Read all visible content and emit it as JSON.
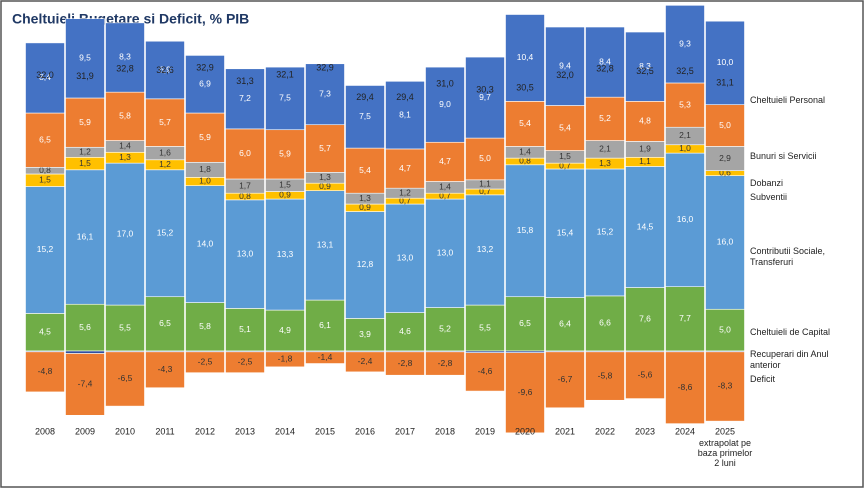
{
  "chart_data": {
    "type": "stacked-bar",
    "title": "Cheltuieli Bugetare si Deficit, % PIB",
    "categories": [
      "2008",
      "2009",
      "2010",
      "2011",
      "2012",
      "2013",
      "2014",
      "2015",
      "2016",
      "2017",
      "2018",
      "2019",
      "2020",
      "2021",
      "2022",
      "2023",
      "2024",
      "2025"
    ],
    "annotation": "extrapolat pe baza primelor 2 luni",
    "series": [
      {
        "name": "Cheltuieli de Capital",
        "color": "#70ad47",
        "values": [
          4.5,
          5.6,
          5.5,
          6.5,
          5.8,
          5.1,
          4.9,
          6.1,
          3.9,
          4.6,
          5.2,
          5.5,
          6.5,
          6.4,
          6.6,
          7.6,
          7.7,
          5.0
        ],
        "value_labels": [
          "4,5",
          "5,6",
          "5,5",
          "6,5",
          "5,8",
          "5,1",
          "4,9",
          "6,1",
          "3,9",
          "4,6",
          "5,2",
          "5,5",
          "6,5",
          "6,4",
          "6,6",
          "7,6",
          "7,7",
          "5,0"
        ]
      },
      {
        "name": "Contributii Sociale, Transferuri",
        "color": "#5b9bd5",
        "values": [
          15.2,
          16.1,
          17.0,
          15.2,
          14.0,
          13.0,
          13.3,
          13.1,
          12.8,
          13.0,
          13.0,
          13.2,
          15.8,
          15.4,
          15.2,
          14.5,
          16.0,
          16.0
        ],
        "value_labels": [
          "15,2",
          "16,1",
          "17,0",
          "15,2",
          "14,0",
          "13,0",
          "13,3",
          "13,1",
          "12,8",
          "13,0",
          "13,0",
          "13,2",
          "15,8",
          "15,4",
          "15,2",
          "14,5",
          "16,0",
          "16,0"
        ]
      },
      {
        "name": "Subventii",
        "color": "#ffc000",
        "values": [
          1.5,
          1.5,
          1.3,
          1.2,
          1.0,
          0.8,
          0.9,
          0.9,
          0.9,
          0.7,
          0.7,
          0.7,
          0.8,
          0.7,
          1.3,
          1.1,
          1.0,
          0.6
        ],
        "value_labels": [
          "1,5",
          "1,5",
          "1,3",
          "1,2",
          "1,0",
          "0,8",
          "0,9",
          "0,9",
          "0,9",
          "0,7",
          "0,7",
          "0,7",
          "0,8",
          "0,7",
          "1,3",
          "1,1",
          "1,0",
          "0,6"
        ]
      },
      {
        "name": "Dobanzi",
        "color": "#a5a5a5",
        "values": [
          0.8,
          1.2,
          1.4,
          1.6,
          1.8,
          1.7,
          1.5,
          1.3,
          1.3,
          1.2,
          1.4,
          1.1,
          1.4,
          1.5,
          2.1,
          1.9,
          2.1,
          2.9
        ],
        "value_labels": [
          "0,8",
          "1,2",
          "1,4",
          "1,6",
          "1,8",
          "1,7",
          "1,5",
          "1,3",
          "1,3",
          "1,2",
          "1,4",
          "1,1",
          "1,4",
          "1,5",
          "2,1",
          "1,9",
          "2,1",
          "2,9"
        ]
      },
      {
        "name": "Bunuri si Servicii",
        "color": "#ed7d31",
        "values": [
          6.5,
          5.9,
          5.8,
          5.7,
          5.9,
          6.0,
          5.9,
          5.7,
          5.4,
          4.7,
          4.7,
          5.0,
          5.4,
          5.4,
          5.2,
          4.8,
          5.3,
          5.0
        ],
        "value_labels": [
          "6,5",
          "5,9",
          "5,8",
          "5,7",
          "5,9",
          "6,0",
          "5,9",
          "5,7",
          "5,4",
          "4,7",
          "4,7",
          "5,0",
          "5,4",
          "5,4",
          "5,2",
          "4,8",
          "5,3",
          "5,0"
        ]
      },
      {
        "name": "Cheltuieli Personal",
        "color": "#4472c4",
        "values": [
          8.4,
          9.5,
          8.3,
          6.9,
          6.9,
          7.2,
          7.5,
          7.3,
          7.5,
          8.1,
          9.0,
          9.7,
          10.4,
          9.4,
          8.4,
          8.3,
          9.3,
          10.0
        ],
        "value_labels": [
          "8,4",
          "9,5",
          "8,3",
          "6,9",
          "6,9",
          "7,2",
          "7,5",
          "7,3",
          "7,5",
          "8,1",
          "9,0",
          "9,7",
          "10,4",
          "9,4",
          "8,4",
          "8,3",
          "9,3",
          "10,0"
        ]
      },
      {
        "name": "Recuperari din Anul anterior",
        "color": "#2f4f9f",
        "values": [
          -0.1,
          -0.3,
          -0.1,
          -0.1,
          -0.1,
          -0.1,
          -0.1,
          -0.1,
          -0.1,
          -0.1,
          -0.1,
          -0.2,
          -0.2,
          -0.1,
          -0.1,
          -0.1,
          -0.1,
          -0.1
        ]
      },
      {
        "name": "Deficit",
        "color": "#ed7d31",
        "values": [
          -4.8,
          -7.4,
          -6.5,
          -4.3,
          -2.5,
          -2.5,
          -1.8,
          -1.4,
          -2.4,
          -2.8,
          -2.8,
          -4.6,
          -9.6,
          -6.7,
          -5.8,
          -5.6,
          -8.6,
          -8.3
        ],
        "value_labels": [
          "-4,8",
          "-7,4",
          "-6,5",
          "-4,3",
          "-2,5",
          "-2,5",
          "-1,8",
          "-1,4",
          "-2,4",
          "-2,8",
          "-2,8",
          "-4,6",
          "-9,6",
          "-6,7",
          "-5,8",
          "-5,6",
          "-8,6",
          "-8,3"
        ]
      }
    ],
    "totals": [
      32.0,
      31.9,
      32.8,
      32.6,
      32.9,
      31.3,
      32.1,
      32.9,
      29.4,
      29.4,
      31.0,
      30.3,
      30.5,
      32.0,
      32.8,
      32.5,
      32.5,
      31.1
    ],
    "totals_labels": [
      "32,0",
      "31,9",
      "32,8",
      "32,6",
      "32,9",
      "31,3",
      "32,1",
      "32,9",
      "29,4",
      "29,4",
      "31,0",
      "30,3",
      "30,5",
      "32,0",
      "32,8",
      "32,5",
      "32,5",
      "31,1"
    ]
  }
}
